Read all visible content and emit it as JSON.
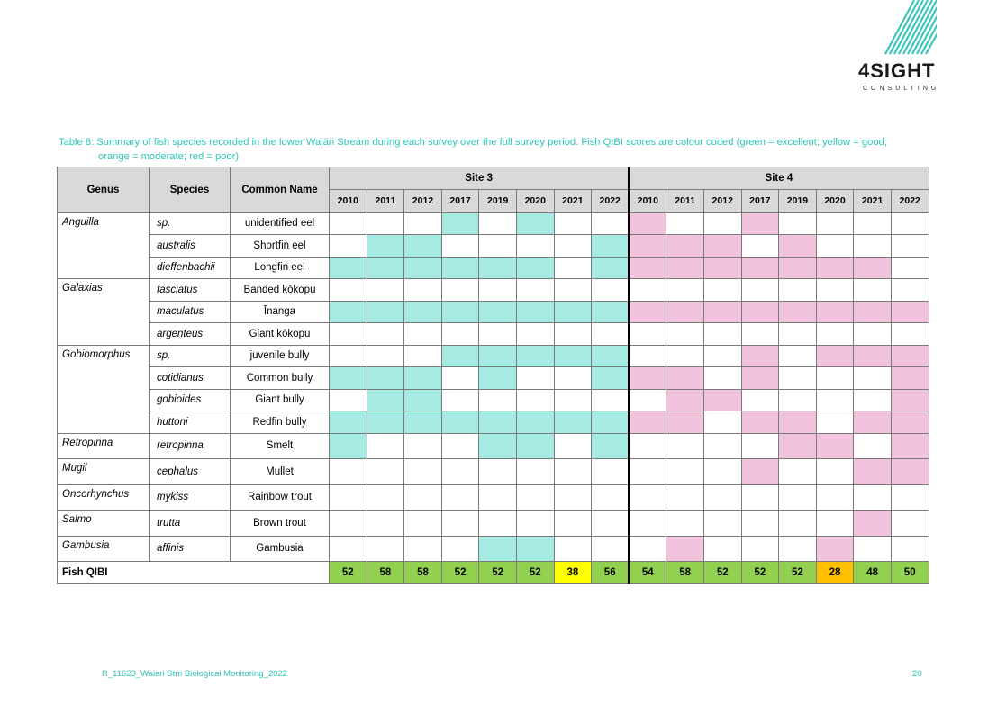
{
  "logo": {
    "name": "4SIGHT",
    "sub": "CONSULTING"
  },
  "caption": {
    "line1": "Table 8: Summary of fish species recorded in the lower Waiāri Stream during each survey over the full survey period. Fish QIBI scores are colour coded (green = excellent; yellow = good;",
    "line2": "orange = moderate; red = poor)"
  },
  "table": {
    "headers": {
      "genus": "Genus",
      "species": "Species",
      "common": "Common Name",
      "site3": "Site 3",
      "site4": "Site 4"
    },
    "years_site3": [
      "2010",
      "2011",
      "2012",
      "2017",
      "2019",
      "2020",
      "2021",
      "2022"
    ],
    "years_site4": [
      "2010",
      "2011",
      "2012",
      "2017",
      "2019",
      "2020",
      "2021",
      "2022"
    ],
    "rows": [
      {
        "genus": "Anguilla",
        "species": "sp.",
        "common": "unidentified eel",
        "site3": [
          0,
          0,
          0,
          1,
          0,
          1,
          0,
          0
        ],
        "site4": [
          1,
          0,
          0,
          1,
          0,
          0,
          0,
          0
        ]
      },
      {
        "genus": "",
        "species": "australis",
        "common": "Shortfin eel",
        "site3": [
          0,
          1,
          1,
          0,
          0,
          0,
          0,
          1
        ],
        "site4": [
          1,
          1,
          1,
          0,
          1,
          0,
          0,
          0
        ]
      },
      {
        "genus": "",
        "species": "dieffenbachii",
        "common": "Longfin eel",
        "site3": [
          1,
          1,
          1,
          1,
          1,
          1,
          0,
          1
        ],
        "site4": [
          1,
          1,
          1,
          1,
          1,
          1,
          1,
          0
        ]
      },
      {
        "genus": "Galaxias",
        "species": "fasciatus",
        "common": "Banded kōkopu",
        "site3": [
          0,
          0,
          0,
          0,
          0,
          0,
          0,
          0
        ],
        "site4": [
          0,
          0,
          0,
          0,
          0,
          0,
          0,
          0
        ]
      },
      {
        "genus": "",
        "species": "maculatus",
        "common": "Īnanga",
        "site3": [
          1,
          1,
          1,
          1,
          1,
          1,
          1,
          1
        ],
        "site4": [
          1,
          1,
          1,
          1,
          1,
          1,
          1,
          1
        ]
      },
      {
        "genus": "",
        "species": "argenteus",
        "common": "Giant kōkopu",
        "site3": [
          0,
          0,
          0,
          0,
          0,
          0,
          0,
          0
        ],
        "site4": [
          0,
          0,
          0,
          0,
          0,
          0,
          0,
          0
        ]
      },
      {
        "genus": "Gobiomorphus",
        "species": "sp.",
        "common": "juvenile bully",
        "site3": [
          0,
          0,
          0,
          1,
          1,
          1,
          1,
          1
        ],
        "site4": [
          0,
          0,
          0,
          1,
          0,
          1,
          1,
          1
        ]
      },
      {
        "genus": "",
        "species": "cotidianus",
        "common": "Common bully",
        "site3": [
          1,
          1,
          1,
          0,
          1,
          0,
          0,
          1
        ],
        "site4": [
          1,
          1,
          0,
          1,
          0,
          0,
          0,
          1
        ]
      },
      {
        "genus": "",
        "species": "gobioides",
        "common": "Giant bully",
        "site3": [
          0,
          1,
          1,
          0,
          0,
          0,
          0,
          0
        ],
        "site4": [
          0,
          1,
          1,
          0,
          0,
          0,
          0,
          1
        ]
      },
      {
        "genus": "",
        "species": "huttoni",
        "common": "Redfin bully",
        "site3": [
          1,
          1,
          1,
          1,
          1,
          1,
          1,
          1
        ],
        "site4": [
          1,
          1,
          0,
          1,
          1,
          0,
          1,
          1
        ]
      },
      {
        "genus": "Retropinna",
        "species": "retropinna",
        "common": "Smelt",
        "site3": [
          1,
          0,
          0,
          0,
          1,
          1,
          0,
          1
        ],
        "site4": [
          0,
          0,
          0,
          0,
          1,
          1,
          0,
          1
        ]
      },
      {
        "genus": "Mugil",
        "species": "cephalus",
        "common": "Mullet",
        "site3": [
          0,
          0,
          0,
          0,
          0,
          0,
          0,
          0
        ],
        "site4": [
          0,
          0,
          0,
          1,
          0,
          0,
          1,
          1
        ]
      },
      {
        "genus": "Oncorhynchus",
        "species": "mykiss",
        "common": "Rainbow trout",
        "site3": [
          0,
          0,
          0,
          0,
          0,
          0,
          0,
          0
        ],
        "site4": [
          0,
          0,
          0,
          0,
          0,
          0,
          0,
          0
        ]
      },
      {
        "genus": "Salmo",
        "species": "trutta",
        "common": "Brown trout",
        "site3": [
          0,
          0,
          0,
          0,
          0,
          0,
          0,
          0
        ],
        "site4": [
          0,
          0,
          0,
          0,
          0,
          0,
          1,
          0
        ]
      },
      {
        "genus": "Gambusia",
        "species": "affinis",
        "common": "Gambusia",
        "site3": [
          0,
          0,
          0,
          0,
          1,
          1,
          0,
          0
        ],
        "site4": [
          0,
          1,
          0,
          0,
          0,
          1,
          0,
          0
        ]
      }
    ],
    "qibi": {
      "label": "Fish QIBI",
      "site3": [
        {
          "v": "52",
          "c": "excellent"
        },
        {
          "v": "58",
          "c": "excellent"
        },
        {
          "v": "58",
          "c": "excellent"
        },
        {
          "v": "52",
          "c": "excellent"
        },
        {
          "v": "52",
          "c": "excellent"
        },
        {
          "v": "52",
          "c": "excellent"
        },
        {
          "v": "38",
          "c": "good"
        },
        {
          "v": "56",
          "c": "excellent"
        }
      ],
      "site4": [
        {
          "v": "54",
          "c": "excellent"
        },
        {
          "v": "58",
          "c": "excellent"
        },
        {
          "v": "52",
          "c": "excellent"
        },
        {
          "v": "52",
          "c": "excellent"
        },
        {
          "v": "52",
          "c": "excellent"
        },
        {
          "v": "28",
          "c": "moderate"
        },
        {
          "v": "48",
          "c": "excellent"
        },
        {
          "v": "50",
          "c": "excellent"
        }
      ]
    }
  },
  "footer": {
    "doc": "R_11623_Waiari Stm Biological Monitoring_2022",
    "page": "20"
  }
}
